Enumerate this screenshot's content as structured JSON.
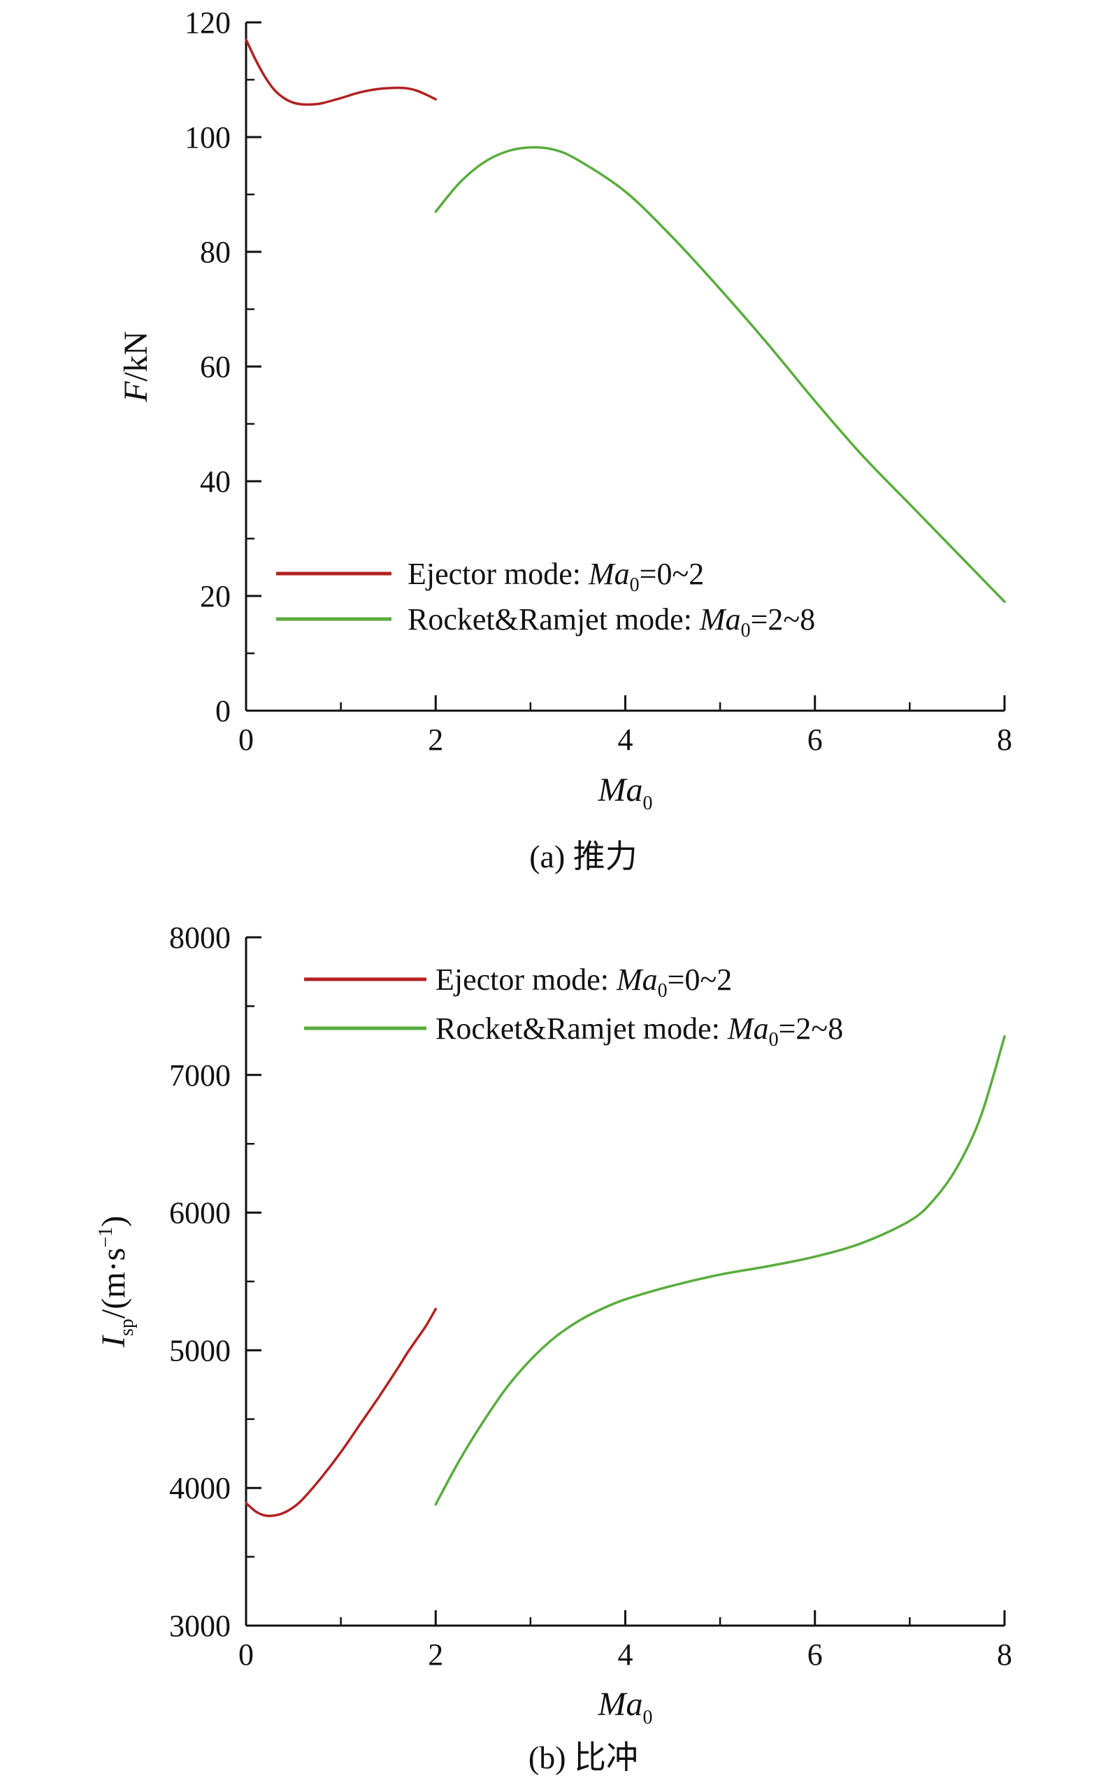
{
  "chart_data": [
    {
      "type": "line",
      "caption": "(a) 推力",
      "xlabel": {
        "main": "Ma",
        "sub": "0"
      },
      "ylabel": {
        "main": "F",
        "rest": "/kN"
      },
      "xlim": [
        0,
        8
      ],
      "ylim": [
        0,
        120
      ],
      "xticks": [
        0,
        2,
        4,
        6,
        8
      ],
      "yticks": [
        0,
        20,
        40,
        60,
        80,
        100,
        120
      ],
      "grid": false,
      "legend_position": "lower-middle",
      "series": [
        {
          "name": "Ejector mode: Ma0=0~2",
          "legend": {
            "prefix": "Ejector mode: ",
            "var": "Ma",
            "sub": "0",
            "suffix": "=0~2"
          },
          "color": "#b22222",
          "x": [
            0,
            0.1,
            0.2,
            0.3,
            0.4,
            0.5,
            0.6,
            0.7,
            0.8,
            1.0,
            1.2,
            1.4,
            1.6,
            1.7,
            1.8,
            1.9,
            2.0
          ],
          "y": [
            117,
            113.5,
            110.5,
            108.2,
            106.8,
            106.0,
            105.7,
            105.7,
            105.9,
            106.8,
            107.8,
            108.4,
            108.6,
            108.5,
            108.1,
            107.4,
            106.6
          ]
        },
        {
          "name": "Rocket&Ramjet mode: Ma0=2~8",
          "legend": {
            "prefix": "Rocket&Ramjet mode: ",
            "var": "Ma",
            "sub": "0",
            "suffix": "=2~8"
          },
          "color": "#5aac3e",
          "x": [
            2.0,
            2.25,
            2.5,
            2.75,
            3.0,
            3.25,
            3.5,
            4.0,
            4.5,
            5.0,
            5.5,
            6.0,
            6.5,
            7.0,
            7.5,
            8.0
          ],
          "y": [
            87,
            92,
            95.5,
            97.5,
            98.2,
            97.8,
            96.0,
            90.5,
            82.5,
            73.5,
            64.0,
            54.0,
            44.5,
            36.0,
            27.5,
            19.0
          ]
        }
      ]
    },
    {
      "type": "line",
      "caption": "(b) 比冲",
      "xlabel": {
        "main": "Ma",
        "sub": "0"
      },
      "ylabel": {
        "main": "I",
        "sub": "sp",
        "rest": "/(m·s",
        "sup": "−1",
        "close": ")"
      },
      "xlim": [
        0,
        8
      ],
      "ylim": [
        3000,
        8000
      ],
      "xticks": [
        0,
        2,
        4,
        6,
        8
      ],
      "yticks": [
        3000,
        4000,
        5000,
        6000,
        7000,
        8000
      ],
      "grid": false,
      "legend_position": "top-left",
      "series": [
        {
          "name": "Ejector mode: Ma0=0~2",
          "legend": {
            "prefix": "Ejector mode: ",
            "var": "Ma",
            "sub": "0",
            "suffix": "=0~2"
          },
          "color": "#b22222",
          "x": [
            0,
            0.1,
            0.2,
            0.3,
            0.4,
            0.5,
            0.6,
            0.8,
            1.0,
            1.2,
            1.4,
            1.6,
            1.7,
            1.8,
            1.9,
            2.0
          ],
          "y": [
            3890,
            3830,
            3800,
            3800,
            3820,
            3860,
            3920,
            4080,
            4260,
            4460,
            4660,
            4870,
            4980,
            5080,
            5180,
            5300
          ]
        },
        {
          "name": "Rocket&Ramjet mode: Ma0=2~8",
          "legend": {
            "prefix": "Rocket&Ramjet mode: ",
            "var": "Ma",
            "sub": "0",
            "suffix": "=2~8"
          },
          "color": "#5aac3e",
          "x": [
            2.0,
            2.25,
            2.5,
            2.75,
            3.0,
            3.25,
            3.5,
            3.75,
            4.0,
            4.5,
            5.0,
            5.5,
            6.0,
            6.5,
            7.0,
            7.25,
            7.5,
            7.75,
            8.0
          ],
          "y": [
            3880,
            4200,
            4480,
            4730,
            4930,
            5090,
            5210,
            5300,
            5370,
            5470,
            5550,
            5610,
            5680,
            5780,
            5940,
            6090,
            6330,
            6700,
            7280
          ]
        }
      ]
    }
  ]
}
